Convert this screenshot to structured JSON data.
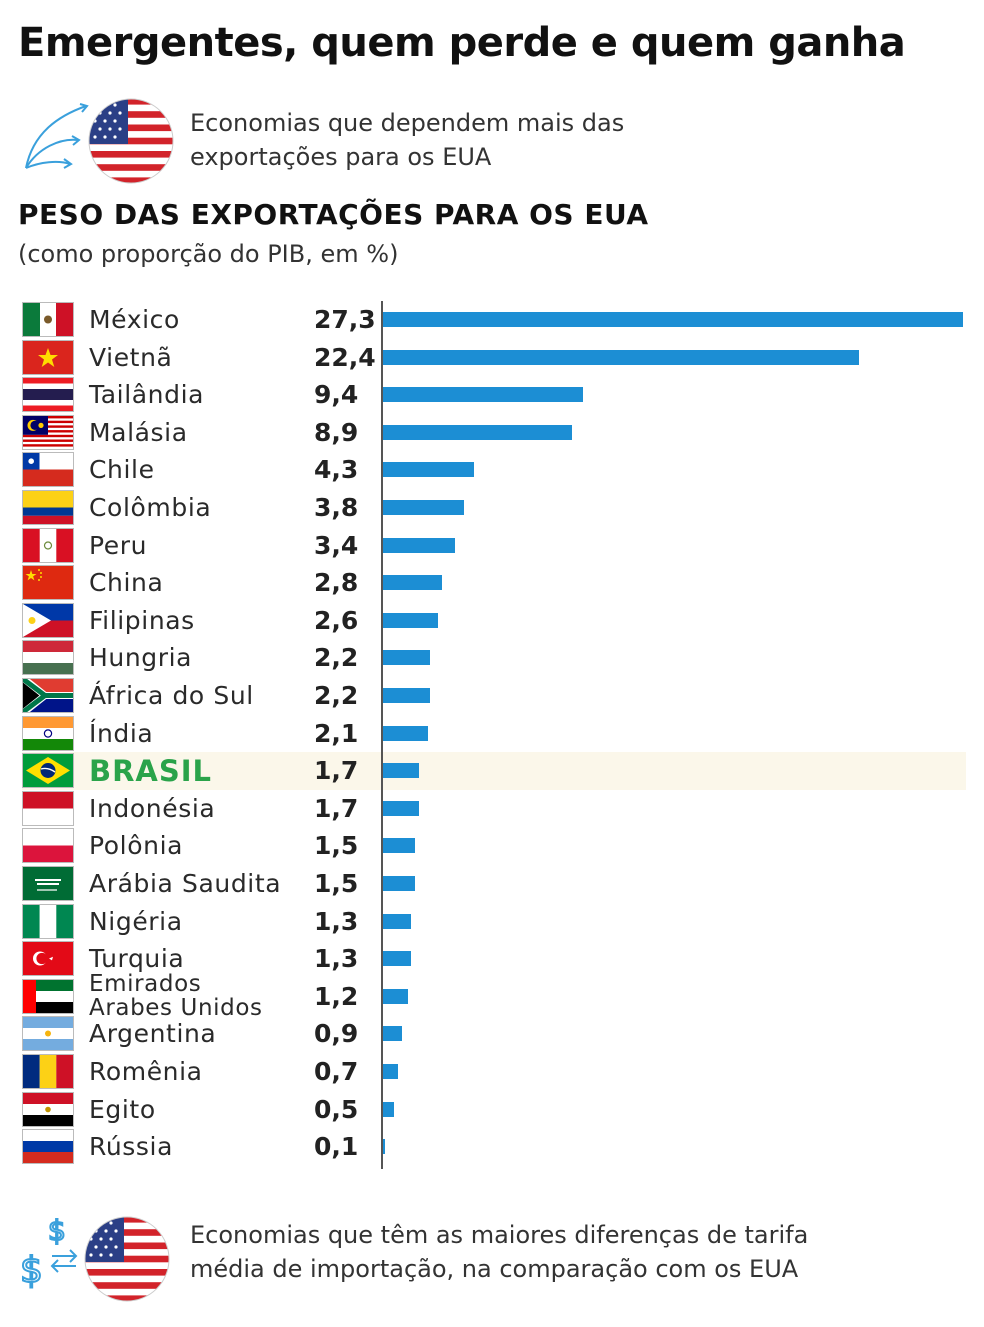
{
  "title": "Emergentes, quem perde e quem ganha",
  "intro": {
    "line1": "Economias que dependem mais das",
    "line2": "exportações para os EUA",
    "icon": "export-arrows-icon",
    "flag": "usa-flag"
  },
  "subhead": "PESO DAS EXPORTAÇÕES PARA OS EUA",
  "subnote": "(como proporção do PIB, em %)",
  "chart_data": {
    "type": "bar",
    "orientation": "horizontal",
    "title": "PESO DAS EXPORTAÇÕES PARA OS EUA",
    "subtitle": "(como proporção do PIB, em %)",
    "bar_color": "#1c8ed4",
    "highlight_category": "BRASIL",
    "highlight_color": "#2aa34a",
    "xlim": [
      0,
      27.3
    ],
    "categories": [
      "México",
      "Vietnã",
      "Tailândia",
      "Malásia",
      "Chile",
      "Colômbia",
      "Peru",
      "China",
      "Filipinas",
      "Hungria",
      "África do Sul",
      "Índia",
      "BRASIL",
      "Indonésia",
      "Polônia",
      "Arábia Saudita",
      "Nigéria",
      "Turquia",
      "Emirados Arabes Unidos",
      "Argentina",
      "Romênia",
      "Egito",
      "Rússia"
    ],
    "value_labels": [
      "27,3",
      "22,4",
      "9,4",
      "8,9",
      "4,3",
      "3,8",
      "3,4",
      "2,8",
      "2,6",
      "2,2",
      "2,2",
      "2,1",
      "1,7",
      "1,7",
      "1,5",
      "1,5",
      "1,3",
      "1,3",
      "1,2",
      "0,9",
      "0,7",
      "0,5",
      "0,1"
    ],
    "values": [
      27.3,
      22.4,
      9.4,
      8.9,
      4.3,
      3.8,
      3.4,
      2.8,
      2.6,
      2.2,
      2.2,
      2.1,
      1.7,
      1.7,
      1.5,
      1.5,
      1.3,
      1.3,
      1.2,
      0.9,
      0.7,
      0.5,
      0.1
    ],
    "flags": [
      "mexico-flag",
      "vietnam-flag",
      "thailand-flag",
      "malaysia-flag",
      "chile-flag",
      "colombia-flag",
      "peru-flag",
      "china-flag",
      "philippines-flag",
      "hungary-flag",
      "south-africa-flag",
      "india-flag",
      "brazil-flag",
      "indonesia-flag",
      "poland-flag",
      "saudi-arabia-flag",
      "nigeria-flag",
      "turkey-flag",
      "uae-flag",
      "argentina-flag",
      "romania-flag",
      "egypt-flag",
      "russia-flag"
    ]
  },
  "outro": {
    "line1": "Economias que têm as maiores diferenças de tarifa",
    "line2": "média de importação, na comparação com os EUA",
    "icon": "currency-exchange-icon",
    "flag": "usa-flag"
  }
}
